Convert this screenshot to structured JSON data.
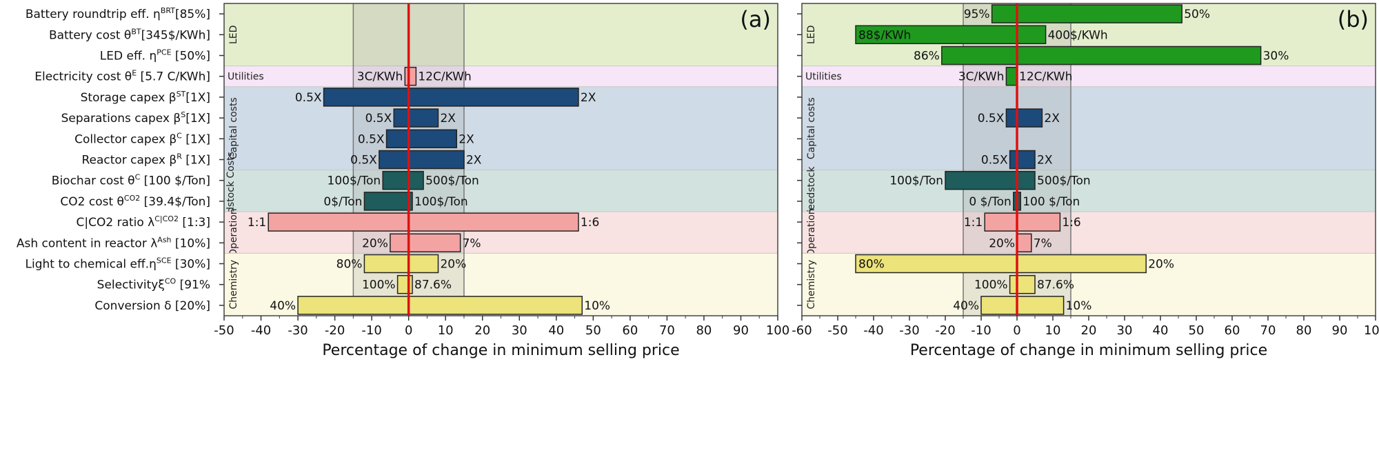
{
  "colors": {
    "axis_red": "#dd1111",
    "bar_outline": "#222222",
    "band_fill": "#9a9a9a",
    "frame": "#444444"
  },
  "params": [
    {
      "label": "Battery roundtrip eff. η",
      "sup": "BRT",
      "tail": "[85%]"
    },
    {
      "label": "Battery cost θ",
      "sup": "BT",
      "tail": "[345$/KWh]"
    },
    {
      "label": "LED eff.  η",
      "sup": "PCE",
      "tail": " [50%]"
    },
    {
      "label": "Electricity cost θ",
      "sup": "E",
      "tail": " [5.7 C/KWh]"
    },
    {
      "label": "Storage capex β",
      "sup": "ST",
      "tail": "[1X]"
    },
    {
      "label": "Separations capex β",
      "sup": "S",
      "tail": "[1X]"
    },
    {
      "label": "Collector capex β",
      "sup": "C",
      "tail": " [1X]"
    },
    {
      "label": "Reactor capex β",
      "sup": "R",
      "tail": " [1X]"
    },
    {
      "label": "Biochar cost θ",
      "sup": "C",
      "tail": " [100 $/Ton]"
    },
    {
      "label": "CO2 cost θ",
      "sup": "CO2",
      "tail": " [39.4$/Ton]"
    },
    {
      "label": "C|CO2 ratio  λ",
      "sup": "C|CO2",
      "tail": " [1:3]"
    },
    {
      "label": "Ash content in reactor λ",
      "sup": "Ash",
      "tail": " [10%]"
    },
    {
      "label": "Light to chemical eff.η",
      "sup": "SCE",
      "tail": " [30%]"
    },
    {
      "label": "Selectivityξ",
      "sup": "CO",
      "tail": " [91%"
    },
    {
      "label": "Conversion δ",
      "sup": "",
      "tail": " [20%]"
    }
  ],
  "groups": [
    {
      "name": "LED",
      "rows": [
        0,
        2
      ],
      "color": "#e4eecd"
    },
    {
      "name": "Utilities",
      "rows": [
        3,
        3
      ],
      "color": "#f7e6f7"
    },
    {
      "name": "Capital costs",
      "rows": [
        4,
        7
      ],
      "color": "#cfdbe6"
    },
    {
      "name": "Feedstock Costs",
      "rows": [
        8,
        9
      ],
      "color": "#d2e2df"
    },
    {
      "name": "Operation",
      "rows": [
        10,
        11
      ],
      "color": "#f8e2e2"
    },
    {
      "name": "Chemistry",
      "rows": [
        12,
        14
      ],
      "color": "#fbf9e3"
    }
  ],
  "chart_data": [
    {
      "type": "bar",
      "panel_label": "(a)",
      "xlabel": "Percentage of change in minimum selling price",
      "xlim": [
        -50,
        100
      ],
      "xticks": [
        -50,
        -40,
        -30,
        -20,
        -10,
        0,
        10,
        20,
        30,
        40,
        50,
        60,
        70,
        80,
        90,
        100
      ],
      "band": [
        -15,
        15
      ],
      "bars": [
        null,
        null,
        null,
        {
          "low": -1,
          "high": 2,
          "low_label": "3C/KWh",
          "high_label": "12C/KWh",
          "color": "#f4a3a3"
        },
        {
          "low": -23,
          "high": 46,
          "low_label": "0.5X",
          "high_label": "2X",
          "color": "#1c4a7a"
        },
        {
          "low": -4,
          "high": 8,
          "low_label": "0.5X",
          "high_label": "2X",
          "color": "#1c4a7a"
        },
        {
          "low": -6,
          "high": 13,
          "low_label": "0.5X",
          "high_label": "2X",
          "color": "#1c4a7a"
        },
        {
          "low": -8,
          "high": 15,
          "low_label": "0.5X",
          "high_label": "2X",
          "color": "#1c4a7a"
        },
        {
          "low": -7,
          "high": 4,
          "low_label": "100$/Ton",
          "high_label": "500$/Ton",
          "color": "#1f5c5c"
        },
        {
          "low": -12,
          "high": 1,
          "low_label": "0$/Ton",
          "high_label": "100$/Ton",
          "color": "#1f5c5c"
        },
        {
          "low": -38,
          "high": 46,
          "low_label": "1:1",
          "high_label": "1:6",
          "color": "#f4a3a3"
        },
        {
          "low": -5,
          "high": 14,
          "low_label": "20%",
          "high_label": "7%",
          "color": "#f4a3a3"
        },
        {
          "low": -12,
          "high": 8,
          "low_label": "80%",
          "high_label": "20%",
          "color": "#ece37a"
        },
        {
          "low": -3,
          "high": 1,
          "low_label": "100%",
          "high_label": "87.6%",
          "color": "#ece37a"
        },
        {
          "low": -30,
          "high": 47,
          "low_label": "40%",
          "high_label": "10%",
          "color": "#ece37a"
        }
      ]
    },
    {
      "type": "bar",
      "panel_label": "(b)",
      "xlabel": "Percentage of change in minimum selling price",
      "xlim": [
        -60,
        100
      ],
      "xticks": [
        -60,
        -50,
        -40,
        -30,
        -20,
        -10,
        0,
        10,
        20,
        30,
        40,
        50,
        60,
        70,
        80,
        90,
        100
      ],
      "band": [
        -15,
        15
      ],
      "bars": [
        {
          "low": -7,
          "high": 46,
          "low_label": "95%",
          "high_label": "50%",
          "color": "#1f9a1f"
        },
        {
          "low": -45,
          "high": 8,
          "low_label": "88$/KWh",
          "high_label": "400$/KWh",
          "color": "#1f9a1f",
          "low_label_inside": true
        },
        {
          "low": -21,
          "high": 68,
          "low_label": "86%",
          "high_label": "30%",
          "color": "#1f9a1f"
        },
        {
          "low": -3,
          "high": 0,
          "low_label": "3C/KWh",
          "high_label": "12C/KWh",
          "color": "#1f9a1f"
        },
        null,
        {
          "low": -3,
          "high": 7,
          "low_label": "0.5X",
          "high_label": "2X",
          "color": "#1c4a7a"
        },
        null,
        {
          "low": -2,
          "high": 5,
          "low_label": "0.5X",
          "high_label": "2X",
          "color": "#1c4a7a"
        },
        {
          "low": -20,
          "high": 5,
          "low_label": "100$/Ton",
          "high_label": "500$/Ton",
          "color": "#1f5c5c"
        },
        {
          "low": -1,
          "high": 1,
          "low_label": "0 $/Ton",
          "high_label": "100 $/Ton",
          "color": "#1f5c5c"
        },
        {
          "low": -9,
          "high": 12,
          "low_label": "1:1",
          "high_label": "1:6",
          "color": "#f4a3a3"
        },
        {
          "low": 0,
          "high": 4,
          "low_label": "20%",
          "high_label": "7%",
          "color": "#f4a3a3"
        },
        {
          "low": -45,
          "high": 36,
          "low_label": "80%",
          "high_label": "20%",
          "color": "#ece37a",
          "low_label_inside": true
        },
        {
          "low": -2,
          "high": 5,
          "low_label": "100%",
          "high_label": "87.6%",
          "color": "#ece37a"
        },
        {
          "low": -10,
          "high": 13,
          "low_label": "40%",
          "high_label": "10%",
          "color": "#ece37a"
        }
      ]
    }
  ]
}
